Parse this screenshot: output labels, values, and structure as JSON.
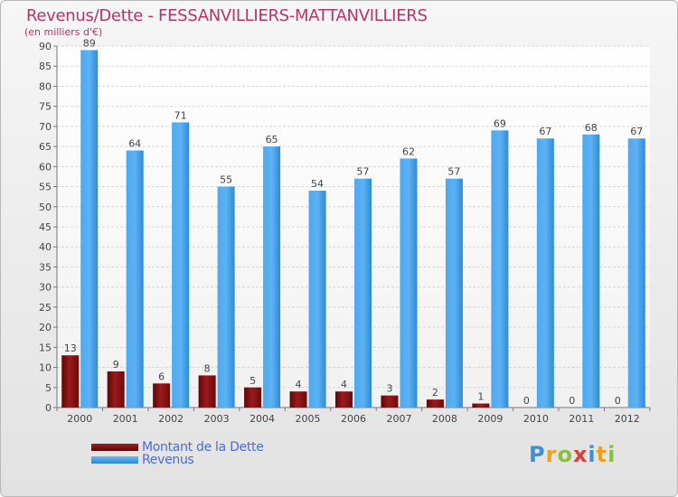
{
  "chart_data": {
    "type": "bar",
    "title": "Revenus/Dette - FESSANVILLIERS-MATTANVILLIERS",
    "subtitle": "(en milliers d'€)",
    "categories": [
      "2000",
      "2001",
      "2002",
      "2003",
      "2004",
      "2005",
      "2006",
      "2007",
      "2008",
      "2009",
      "2010",
      "2011",
      "2012"
    ],
    "series": [
      {
        "name": "Montant de la Dette",
        "color": "#7a1212",
        "values": [
          13,
          9,
          6,
          8,
          5,
          4,
          4,
          3,
          2,
          1,
          0,
          0,
          0
        ]
      },
      {
        "name": "Revenus",
        "color": "#3d9ae8",
        "values": [
          89,
          64,
          71,
          55,
          65,
          54,
          57,
          62,
          57,
          69,
          67,
          68,
          67
        ]
      }
    ],
    "ylim": [
      0,
      90
    ],
    "yticks": [
      0,
      5,
      10,
      15,
      20,
      25,
      30,
      35,
      40,
      45,
      50,
      55,
      60,
      65,
      70,
      75,
      80,
      85,
      90
    ],
    "grid": true,
    "legend": "bottom-left"
  },
  "logo": {
    "letters": [
      "P",
      "r",
      "o",
      "x",
      "i",
      "t",
      "i"
    ]
  }
}
